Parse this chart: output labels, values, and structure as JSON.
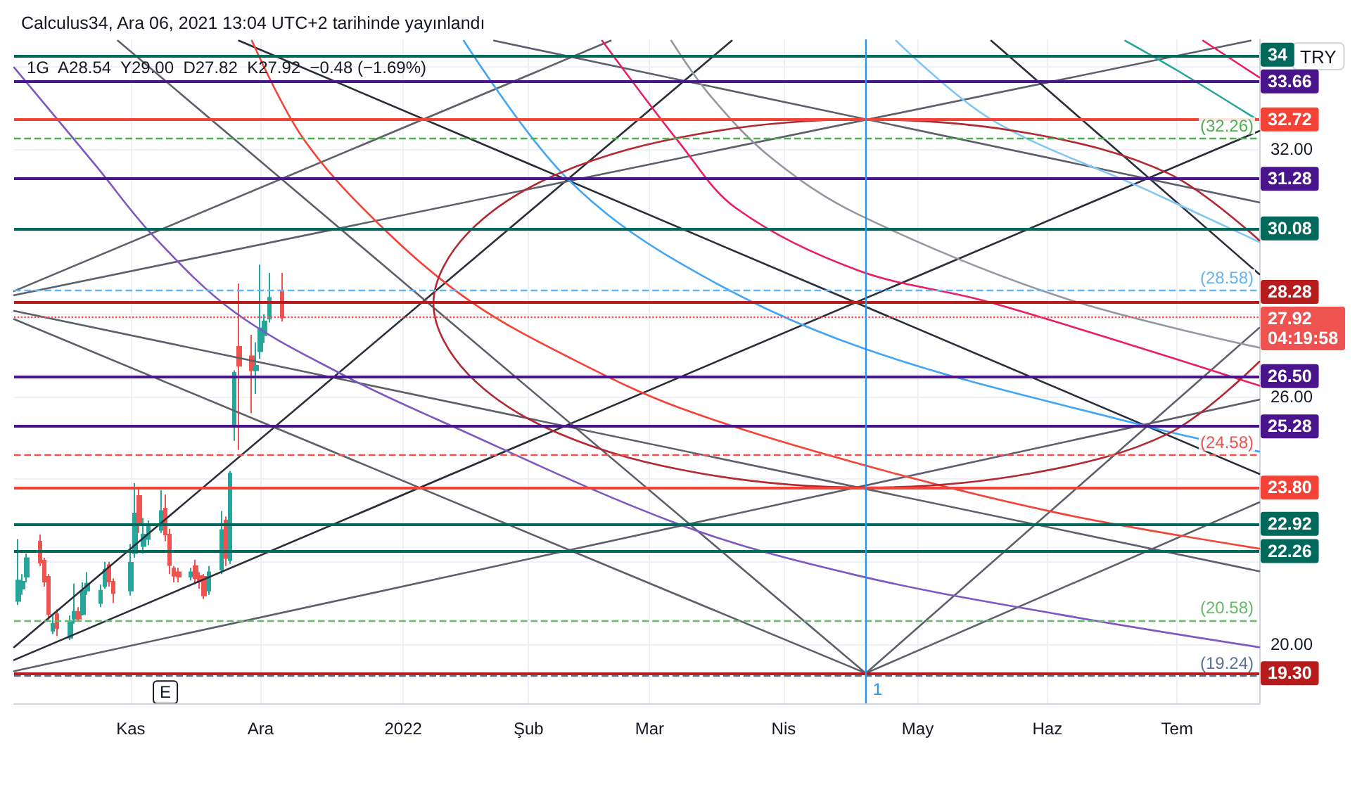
{
  "chart_data": {
    "type": "candlestick",
    "title": "Calculus34, Ara 06, 2021 13:04 UTC+2 tarihinde yayınlandı",
    "subtitle": "1G  A28.54  Y29.00  D27.82  K27.92  −0.48 (−1.69%)",
    "xlim": [
      "2021-10-05",
      "2022-07-20"
    ],
    "xticks": [
      {
        "value": "2021-11-01",
        "label": "Kas"
      },
      {
        "value": "2021-12-01",
        "label": "Ara"
      },
      {
        "value": "2022-01-03",
        "label": "2022"
      },
      {
        "value": "2022-02-01",
        "label": "Şub"
      },
      {
        "value": "2022-03-01",
        "label": "Mar"
      },
      {
        "value": "2022-04-01",
        "label": "Nis"
      },
      {
        "value": "2022-05-02",
        "label": "May"
      },
      {
        "value": "2022-06-01",
        "label": "Haz"
      },
      {
        "value": "2022-07-01",
        "label": "Tem"
      }
    ],
    "ylim": [
      18.57,
      34.66
    ],
    "yticks": [
      {
        "value": 20,
        "label": "20.00"
      },
      {
        "value": 22,
        "label": null
      },
      {
        "value": 24,
        "label": null
      },
      {
        "value": 26,
        "label": "26.00"
      },
      {
        "value": 28,
        "label": null
      },
      {
        "value": 30,
        "label": null
      },
      {
        "value": 32,
        "label": "32.00"
      },
      {
        "value": 34,
        "label": null
      }
    ],
    "grid": true,
    "series": [
      {
        "type": "candlestick",
        "x": [
          "2021-10-06",
          "2021-10-07",
          "2021-10-08",
          "2021-10-11",
          "2021-10-12",
          "2021-10-13",
          "2021-10-14",
          "2021-10-15",
          "2021-10-18",
          "2021-10-19",
          "2021-10-20",
          "2021-10-21",
          "2021-10-22",
          "2021-10-25",
          "2021-10-26",
          "2021-10-27",
          "2021-10-28",
          "2021-11-01",
          "2021-11-02",
          "2021-11-03",
          "2021-11-04",
          "2021-11-05",
          "2021-11-08",
          "2021-11-09",
          "2021-11-10",
          "2021-11-11",
          "2021-11-12",
          "2021-11-15",
          "2021-11-16",
          "2021-11-17",
          "2021-11-18",
          "2021-11-19",
          "2021-11-22",
          "2021-11-23",
          "2021-11-24",
          "2021-11-25",
          "2021-11-26",
          "2021-11-29",
          "2021-11-30",
          "2021-12-01",
          "2021-12-02",
          "2021-12-03",
          "2021-12-06"
        ],
        "ohlc": [
          [
            21.05,
            22.55,
            20.95,
            21.55
          ],
          [
            21.35,
            21.7,
            21.2,
            21.52
          ],
          [
            21.64,
            22.2,
            21.5,
            22.09
          ],
          [
            22.49,
            22.66,
            21.9,
            21.98
          ],
          [
            22.03,
            22.1,
            21.4,
            21.52
          ],
          [
            21.64,
            21.7,
            20.6,
            20.73
          ],
          [
            20.33,
            20.73,
            20.25,
            20.5
          ],
          [
            20.73,
            20.85,
            20.2,
            20.39
          ],
          [
            20.16,
            20.7,
            20.1,
            20.56
          ],
          [
            20.62,
            21.47,
            20.5,
            20.79
          ],
          [
            20.79,
            20.9,
            20.55,
            20.62
          ],
          [
            20.73,
            21.5,
            20.7,
            21.3
          ],
          [
            21.3,
            21.75,
            21.2,
            21.47
          ],
          [
            21.0,
            21.45,
            20.9,
            21.3
          ],
          [
            21.41,
            22.0,
            21.35,
            21.81
          ],
          [
            21.92,
            22.0,
            21.4,
            21.52
          ],
          [
            21.52,
            21.6,
            21.0,
            21.24
          ],
          [
            21.3,
            22.43,
            21.18,
            21.98
          ],
          [
            22.21,
            23.91,
            22.1,
            23.17
          ],
          [
            23.6,
            23.75,
            22.7,
            22.9
          ],
          [
            22.38,
            23.06,
            22.2,
            22.66
          ],
          [
            22.55,
            23.0,
            22.4,
            22.89
          ],
          [
            22.77,
            23.74,
            22.7,
            23.23
          ],
          [
            23.29,
            23.63,
            22.5,
            22.66
          ],
          [
            22.66,
            22.8,
            21.7,
            21.92
          ],
          [
            21.84,
            21.9,
            21.5,
            21.66
          ],
          [
            21.75,
            21.85,
            21.5,
            21.64
          ],
          [
            21.64,
            21.85,
            21.55,
            21.75
          ],
          [
            21.9,
            22.05,
            21.45,
            21.6
          ],
          [
            21.66,
            21.75,
            21.35,
            21.52
          ],
          [
            21.64,
            21.7,
            21.1,
            21.18
          ],
          [
            21.3,
            21.9,
            21.2,
            21.75
          ],
          [
            21.81,
            23.23,
            21.7,
            22.77
          ],
          [
            23.0,
            23.1,
            21.9,
            22.09
          ],
          [
            22.04,
            24.2,
            21.95,
            24.14
          ],
          [
            25.27,
            26.64,
            24.93,
            26.58
          ],
          [
            27.21,
            28.74,
            24.71,
            26.75
          ],
          [
            26.98,
            27.5,
            25.6,
            26.64
          ],
          [
            26.64,
            27.32,
            26.07,
            26.75
          ],
          [
            27.1,
            29.2,
            26.92,
            27.66
          ],
          [
            27.49,
            28.0,
            27.3,
            27.83
          ],
          [
            27.89,
            29.0,
            27.8,
            28.4
          ],
          [
            28.54,
            29.0,
            27.82,
            27.92
          ]
        ],
        "colors": [
          "#26a69a",
          "#26a69a",
          "#26a69a",
          "#ef5350",
          "#ef5350",
          "#ef5350",
          "#26a69a",
          "#ef5350",
          "#26a69a",
          "#26a69a",
          "#ef5350",
          "#26a69a",
          "#26a69a",
          "#26a69a",
          "#26a69a",
          "#ef5350",
          "#ef5350",
          "#26a69a",
          "#26a69a",
          "#ef5350",
          "#26a69a",
          "#26a69a",
          "#26a69a",
          "#ef5350",
          "#ef5350",
          "#ef5350",
          "#ef5350",
          "#26a69a",
          "#ef5350",
          "#ef5350",
          "#ef5350",
          "#26a69a",
          "#26a69a",
          "#ef5350",
          "#26a69a",
          "#26a69a",
          "#ef5350",
          "#ef5350",
          "#26a69a",
          "#26a69a",
          "#26a69a",
          "#26a69a",
          "#ef5350"
        ]
      },
      {
        "type": "line",
        "x": [
          "2021-10-05",
          "2022-07-20"
        ],
        "values": [
          19.62,
          32.44
        ],
        "color": "#2a2e39"
      },
      {
        "type": "line",
        "x": [
          "2021-11-26",
          "2022-07-20"
        ],
        "values": [
          34.63,
          24.13
        ],
        "color": "#2a2e39"
      },
      {
        "type": "line",
        "x": [
          "2021-10-05",
          "2022-03-20"
        ],
        "values": [
          19.93,
          34.63
        ],
        "color": "#2a2e39"
      },
      {
        "type": "line",
        "x": [
          "2021-10-05",
          "2022-04-20"
        ],
        "values": [
          27.88,
          19.3
        ],
        "color": "#5d606b"
      },
      {
        "type": "line",
        "x": [
          "2022-04-20",
          "2022-07-20"
        ],
        "values": [
          19.3,
          23.44
        ],
        "color": "#5d606b"
      },
      {
        "type": "line",
        "x": [
          "2021-10-05",
          "2022-07-20"
        ],
        "values": [
          28.08,
          21.77
        ],
        "color": "#5d606b"
      },
      {
        "type": "line",
        "x": [
          "2021-10-05",
          "2022-07-18"
        ],
        "values": [
          28.46,
          34.63
        ],
        "color": "#5d606b"
      },
      {
        "type": "line",
        "x": [
          "2021-10-05",
          "2022-07-20"
        ],
        "values": [
          19.35,
          25.93
        ],
        "color": "#5d606b"
      },
      {
        "type": "line",
        "x": [
          "2021-10-05",
          "2022-02-20"
        ],
        "values": [
          28.56,
          34.63
        ],
        "color": "#5d606b"
      },
      {
        "type": "line",
        "x": [
          "2022-05-19",
          "2022-07-20"
        ],
        "values": [
          34.63,
          28.97
        ],
        "color": "#2a2e39"
      },
      {
        "type": "line",
        "x": [
          "2022-01-24",
          "2022-07-20"
        ],
        "values": [
          34.63,
          30.71
        ],
        "color": "#5d606b"
      },
      {
        "type": "line",
        "x": [
          "2021-10-29",
          "2022-04-20"
        ],
        "values": [
          34.63,
          19.3
        ],
        "color": "#5d606b"
      },
      {
        "type": "line",
        "x": [
          "2022-04-20",
          "2022-07-20"
        ],
        "values": [
          19.3,
          27.67
        ],
        "color": "#5d606b"
      },
      {
        "type": "line",
        "x": [
          "2021-10-05",
          "2021-10-24",
          "2021-11-06",
          "2021-11-25",
          "2021-12-21",
          "2022-01-10",
          "2022-03-08",
          "2022-04-18",
          "2022-06-04",
          "2022-07-20"
        ],
        "values": [
          33.98,
          31.59,
          29.92,
          28.05,
          26.48,
          25.49,
          22.9,
          21.67,
          20.72,
          19.93
        ],
        "color": "#7e57c2"
      },
      {
        "type": "line",
        "x": [
          "2021-11-29",
          "2021-12-11",
          "2021-12-30",
          "2022-01-19",
          "2022-02-11",
          "2022-03-08",
          "2022-04-19",
          "2022-06-04",
          "2022-07-20"
        ],
        "values": [
          34.63,
          32.24,
          30.02,
          28.28,
          26.92,
          25.73,
          24.36,
          23.17,
          22.32
        ],
        "color": "#f44336"
      },
      {
        "type": "line",
        "x": [
          "2022-01-17",
          "2022-02-09",
          "2022-03-08",
          "2022-04-19",
          "2022-06-24",
          "2022-07-20"
        ],
        "values": [
          34.63,
          31.39,
          29.24,
          27.19,
          25.28,
          24.67
        ],
        "color": "#42a5f5"
      },
      {
        "type": "line",
        "x": [
          "2022-04-27",
          "2022-05-19",
          "2022-06-24",
          "2022-07-20"
        ],
        "values": [
          34.63,
          32.72,
          31.01,
          29.75
        ],
        "color": "#81c7f5"
      },
      {
        "type": "line",
        "x": [
          "2022-03-06",
          "2022-03-15",
          "2022-03-29",
          "2022-04-18",
          "2022-06-04",
          "2022-07-20"
        ],
        "values": [
          34.63,
          33.3,
          31.8,
          30.43,
          28.42,
          27.19
        ],
        "color": "#9598a1"
      },
      {
        "type": "line",
        "x": [
          "2022-02-18",
          "2022-03-08",
          "2022-03-21",
          "2022-04-18",
          "2022-05-19",
          "2022-07-20"
        ],
        "values": [
          34.63,
          32.14,
          30.57,
          29.07,
          28.28,
          26.27
        ],
        "color": "#e91e63"
      },
      {
        "type": "line",
        "x": [
          "2022-07-07",
          "2022-07-20"
        ],
        "values": [
          34.63,
          33.74
        ],
        "color": "#e91e63"
      },
      {
        "type": "line",
        "x": [
          "2022-06-19",
          "2022-07-01",
          "2022-07-19"
        ],
        "values": [
          34.63,
          33.91,
          32.75
        ],
        "color": "#26a69a"
      },
      {
        "type": "line",
        "x": [
          "2022-07-20",
          "2022-06-29",
          "2022-05-28",
          "2022-04-20",
          "2022-03-13",
          "2022-02-08",
          "2022-01-18",
          "2022-01-10",
          "2022-01-18",
          "2022-02-08",
          "2022-03-13",
          "2022-04-20",
          "2022-05-28",
          "2022-06-29",
          "2022-07-20"
        ],
        "values": [
          29.79,
          31.41,
          32.38,
          32.72,
          32.38,
          31.41,
          29.97,
          28.26,
          26.55,
          25.11,
          24.14,
          23.8,
          24.14,
          25.11,
          26.85
        ],
        "color": "#b22833"
      }
    ],
    "ref_lines": [
      {
        "axis": "y",
        "value": 34.27,
        "label": "34",
        "color": "#00695c",
        "line_style": "solid"
      },
      {
        "axis": "y",
        "value": 33.66,
        "label": "33.66",
        "color": "#4a148c",
        "line_style": "solid"
      },
      {
        "axis": "y",
        "value": 32.72,
        "label": "32.72",
        "color": "#f44336",
        "line_style": "solid"
      },
      {
        "axis": "y",
        "value": 32.26,
        "label": "(32.26)",
        "color": "#4caf50",
        "line_style": "dashed"
      },
      {
        "axis": "y",
        "value": 31.28,
        "label": "31.28",
        "color": "#4a148c",
        "line_style": "solid"
      },
      {
        "axis": "y",
        "value": 30.08,
        "label": "30.08",
        "color": "#00695c",
        "line_style": "solid"
      },
      {
        "axis": "y",
        "value": 28.58,
        "label": "(28.58)",
        "color": "#64b5f6",
        "line_style": "dashed"
      },
      {
        "axis": "y",
        "value": 28.28,
        "label": "28.28",
        "color": "#b71c1c",
        "line_style": "solid"
      },
      {
        "axis": "y",
        "value": 27.92,
        "label": "27.92\n04:19:58",
        "color": "#ef5350",
        "line_style": "dotted"
      },
      {
        "axis": "y",
        "value": 26.5,
        "label": "26.50",
        "color": "#4a148c",
        "line_style": "solid"
      },
      {
        "axis": "y",
        "value": 25.28,
        "label": "25.28",
        "color": "#4a148c",
        "line_style": "solid"
      },
      {
        "axis": "y",
        "value": 24.58,
        "label": "(24.58)",
        "color": "#ef5350",
        "line_style": "dashed"
      },
      {
        "axis": "y",
        "value": 23.8,
        "label": "23.80",
        "color": "#f44336",
        "line_style": "solid"
      },
      {
        "axis": "y",
        "value": 22.92,
        "label": "22.92",
        "color": "#00695c",
        "line_style": "solid"
      },
      {
        "axis": "y",
        "value": 22.26,
        "label": "22.26",
        "color": "#00695c",
        "line_style": "solid"
      },
      {
        "axis": "y",
        "value": 20.58,
        "label": "(20.58)",
        "color": "#66bb6a",
        "line_style": "dashed"
      },
      {
        "axis": "y",
        "value": 19.3,
        "label": "19.30",
        "color": "#b71c1c",
        "line_style": "solid"
      },
      {
        "axis": "y",
        "value": 19.24,
        "label": "(19.24)",
        "color": "#5d7290",
        "line_style": "dashed"
      },
      {
        "axis": "x",
        "value": "2022-04-20",
        "label": "1",
        "color": "#2196f3",
        "line_style": "solid"
      }
    ],
    "annotations": [
      {
        "text": "E",
        "x": "2021-11-09",
        "y": 18.84
      },
      "TRY"
    ]
  }
}
